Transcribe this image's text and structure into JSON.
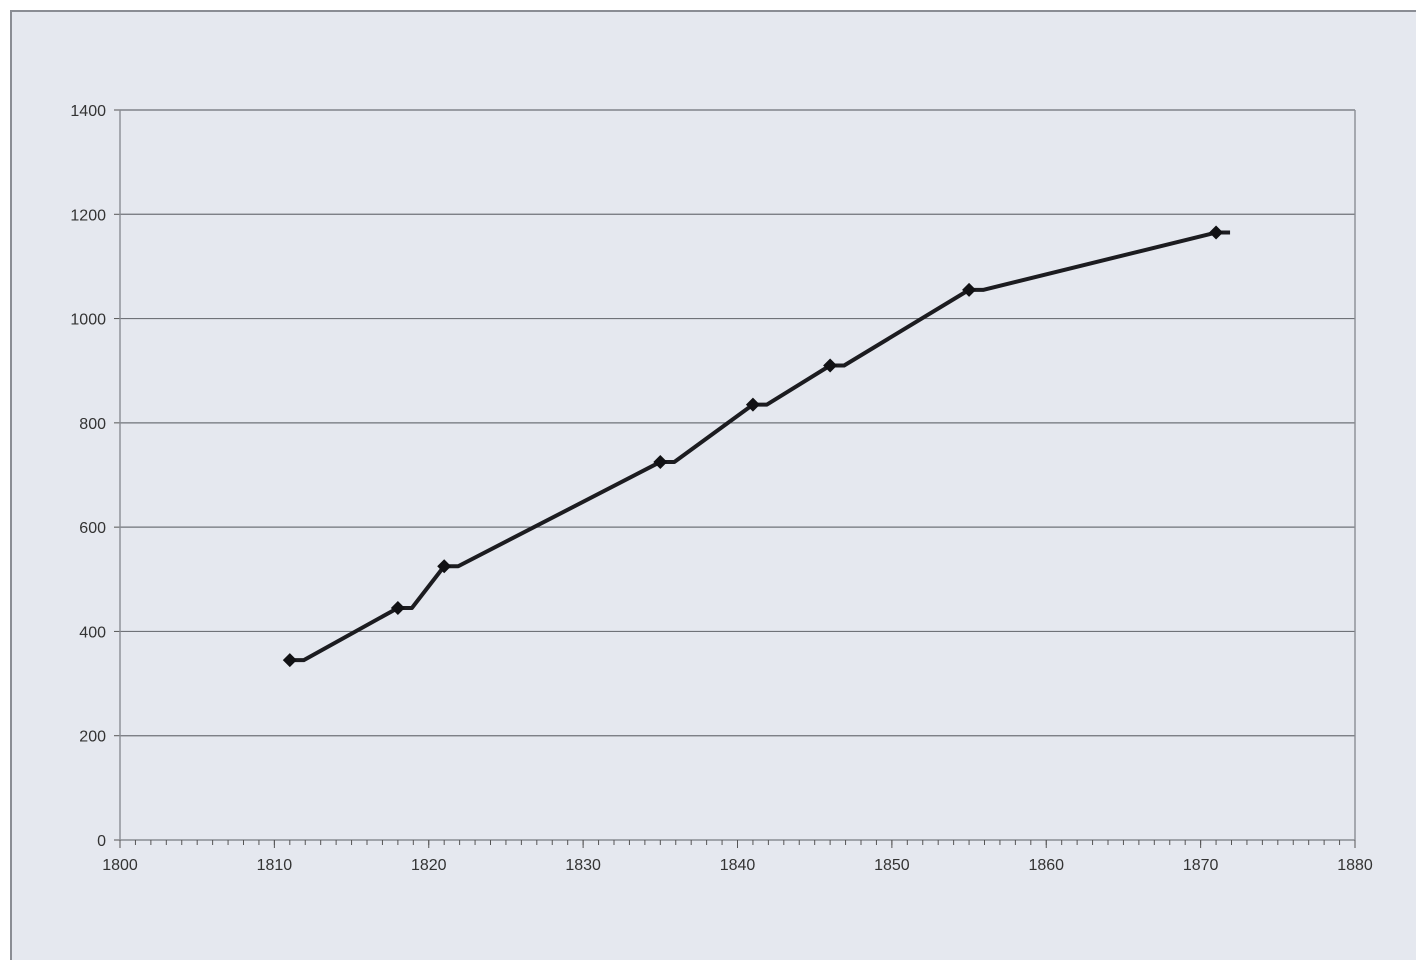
{
  "chart_data": {
    "type": "line",
    "title": "",
    "xlabel": "",
    "ylabel": "",
    "xlim": [
      1800,
      1880
    ],
    "ylim": [
      0,
      1400
    ],
    "x_ticks": [
      1800,
      1810,
      1820,
      1830,
      1840,
      1850,
      1860,
      1870,
      1880
    ],
    "y_ticks": [
      0,
      200,
      400,
      600,
      800,
      1000,
      1200,
      1400
    ],
    "grid": true,
    "legend": "none",
    "series": [
      {
        "color": "#1c1c20",
        "marker": "diamond",
        "points": [
          {
            "x": 1811,
            "y": 345
          },
          {
            "x": 1818,
            "y": 445
          },
          {
            "x": 1821,
            "y": 525
          },
          {
            "x": 1835,
            "y": 725
          },
          {
            "x": 1841,
            "y": 835
          },
          {
            "x": 1846,
            "y": 910
          },
          {
            "x": 1855,
            "y": 1055
          },
          {
            "x": 1871,
            "y": 1165
          }
        ]
      }
    ]
  },
  "colors": {
    "background": "#e5e8ef",
    "line": "#1c1c20",
    "grid": "#6f7278"
  }
}
